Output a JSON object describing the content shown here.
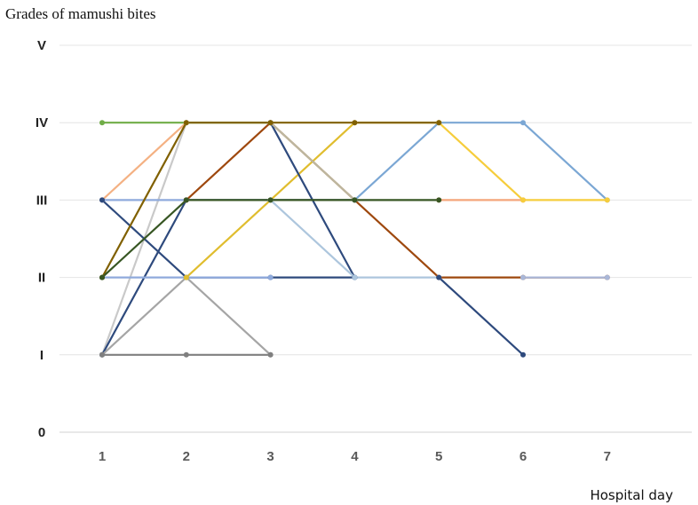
{
  "chart_data": {
    "type": "line",
    "title": "Grades of mamushi bites",
    "xlabel": "Hospital day",
    "ylabel": "",
    "x": [
      1,
      2,
      3,
      4,
      5,
      6,
      7
    ],
    "xlim": [
      0.5,
      8
    ],
    "ylim": [
      0,
      5
    ],
    "y_tick_labels": [
      "0",
      "I",
      "II",
      "III",
      "IV",
      "V"
    ],
    "grid": true,
    "legend": "none",
    "series": [
      {
        "color": "#70ad47",
        "values": [
          4,
          4,
          4,
          null,
          null,
          null,
          null
        ]
      },
      {
        "color": "#f4b183",
        "values": [
          3,
          4,
          null,
          null,
          null,
          null,
          null
        ]
      },
      {
        "color": "#c9c9c9",
        "values": [
          1,
          4,
          null,
          null,
          null,
          null,
          null
        ]
      },
      {
        "color": "#2e4a7d",
        "values": [
          1,
          3,
          3,
          3,
          null,
          null,
          null
        ]
      },
      {
        "color": "#8faadc",
        "values": [
          3,
          3,
          3,
          null,
          null,
          null,
          null
        ]
      },
      {
        "color": "#2e4a7d",
        "values": [
          3,
          2,
          2,
          2,
          null,
          null,
          null
        ]
      },
      {
        "color": "#8faadc",
        "values": [
          2,
          2,
          2,
          null,
          null,
          null,
          null
        ]
      },
      {
        "color": "#a5a5a5",
        "values": [
          1,
          2,
          1,
          null,
          null,
          null,
          null
        ]
      },
      {
        "color": "#7f7f7f",
        "values": [
          1,
          1,
          1,
          null,
          null,
          null,
          null
        ]
      },
      {
        "color": "#e0bd2e",
        "values": [
          null,
          2,
          3,
          4,
          4,
          null,
          null
        ]
      },
      {
        "color": "#9e480e",
        "values": [
          null,
          3,
          4,
          3,
          2,
          2,
          2
        ]
      },
      {
        "color": "#2e4a7d",
        "values": [
          null,
          null,
          4,
          2,
          null,
          null,
          null
        ]
      },
      {
        "color": "#bdb79f",
        "values": [
          null,
          null,
          4,
          3,
          null,
          null,
          null
        ]
      },
      {
        "color": "#adc6dd",
        "values": [
          null,
          null,
          3,
          2,
          2,
          null,
          null
        ]
      },
      {
        "color": "#7ba7d4",
        "values": [
          null,
          null,
          null,
          3,
          4,
          4,
          3
        ]
      },
      {
        "color": "#f4a57a",
        "values": [
          null,
          null,
          null,
          null,
          3,
          3,
          null
        ]
      },
      {
        "color": "#f6cd3c",
        "values": [
          null,
          null,
          null,
          null,
          4,
          3,
          3
        ]
      },
      {
        "color": "#2e4a7d",
        "values": [
          null,
          null,
          null,
          null,
          2,
          1,
          null
        ]
      },
      {
        "color": "#a9b7d8",
        "values": [
          null,
          null,
          null,
          null,
          null,
          2,
          2
        ]
      },
      {
        "color": "#806000",
        "values": [
          2,
          4,
          4,
          4,
          4,
          null,
          null
        ]
      },
      {
        "color": "#375623",
        "values": [
          2,
          3,
          3,
          3,
          3,
          null,
          null
        ]
      }
    ]
  }
}
